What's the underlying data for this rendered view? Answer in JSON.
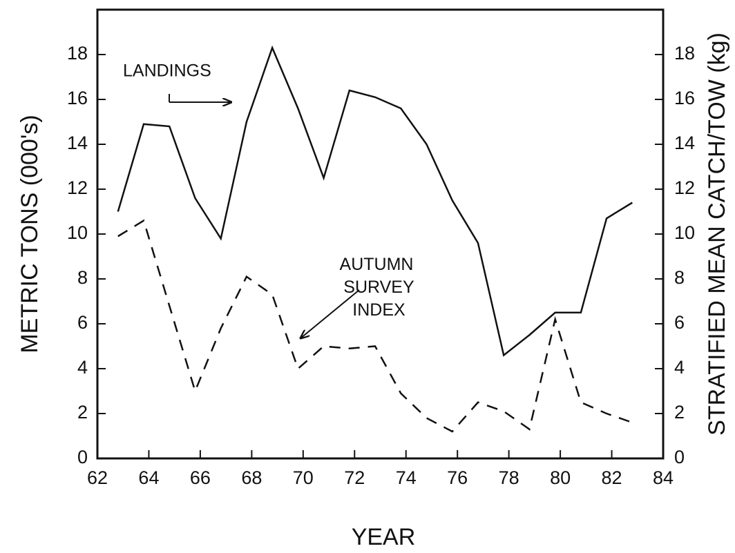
{
  "chart_data": {
    "type": "line",
    "xlabel": "YEAR",
    "ylabel": "METRIC TONS (000's)",
    "y2label": "STRATIFIED MEAN CATCH/TOW (kg)",
    "x": [
      62.8,
      63.8,
      64.8,
      65.8,
      66.8,
      67.8,
      68.8,
      69.8,
      70.8,
      71.8,
      72.8,
      73.8,
      74.8,
      75.8,
      76.8,
      77.8,
      78.8,
      79.8,
      80.8,
      81.8,
      82.8
    ],
    "xlim": [
      62,
      84
    ],
    "xticks": [
      62,
      64,
      66,
      68,
      70,
      72,
      74,
      76,
      78,
      80,
      82,
      84
    ],
    "ylim": [
      0,
      20
    ],
    "yticks": [
      0,
      2,
      4,
      6,
      8,
      10,
      12,
      14,
      16,
      18
    ],
    "y2lim": [
      0,
      20
    ],
    "y2ticks": [
      0,
      2,
      4,
      6,
      8,
      10,
      12,
      14,
      16,
      18
    ],
    "series": [
      {
        "name": "LANDINGS",
        "color": "#111111",
        "style": "solid",
        "values": [
          11.0,
          14.9,
          14.8,
          11.6,
          9.8,
          15.0,
          18.3,
          15.6,
          12.5,
          16.4,
          16.1,
          15.6,
          14.0,
          11.5,
          9.6,
          4.6,
          5.5,
          6.5,
          6.5,
          10.7,
          11.4
        ]
      },
      {
        "name": "AUTUMN SURVEY INDEX",
        "color": "#111111",
        "style": "dashed",
        "axis": "y2",
        "values": [
          9.9,
          10.6,
          6.8,
          3.0,
          5.8,
          8.1,
          7.3,
          4.0,
          5.0,
          4.9,
          5.0,
          2.9,
          1.8,
          1.2,
          2.5,
          2.1,
          1.3,
          6.2,
          2.5,
          2.0,
          1.6
        ]
      }
    ]
  }
}
